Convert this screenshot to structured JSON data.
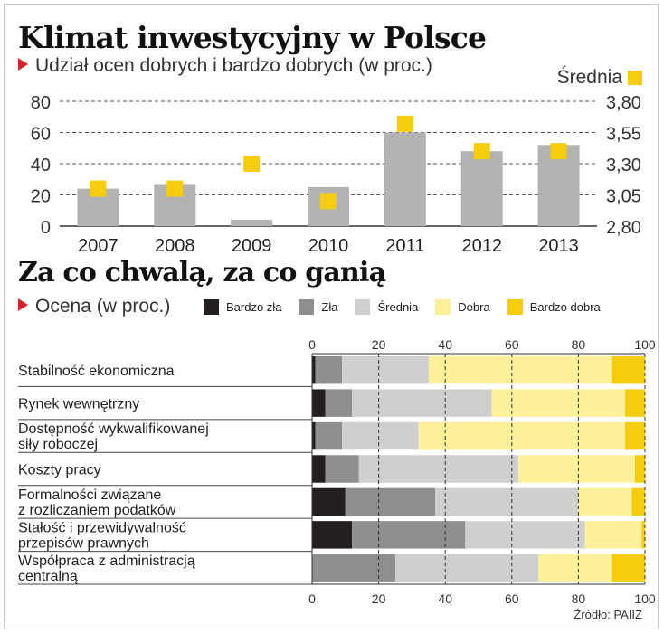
{
  "colors": {
    "bar": "#b3b3b3",
    "mean_marker": "#f6cd0d",
    "bardzo_zla": "#231f20",
    "zla": "#8e8e8e",
    "srednia": "#cfcfcf",
    "dobra": "#fcf09a",
    "bardzo_dobra": "#f6cd0d",
    "accent_triangle": "#d4232c"
  },
  "header": {
    "title": "Klimat inwestycyjny w Polsce",
    "subtitle": "Udział ocen dobrych i bardzo dobrych (w proc.)",
    "mean_legend": "Średnia"
  },
  "section2": {
    "title": "Za co chwalą, za co ganią",
    "subtitle": "Ocena (w proc.)"
  },
  "source": "Źródło: PAIIZ",
  "chart_data": [
    {
      "type": "bar",
      "categories": [
        "2007",
        "2008",
        "2009",
        "2010",
        "2011",
        "2012",
        "2013"
      ],
      "series": [
        {
          "values": [
            24,
            27,
            4,
            25,
            60,
            48,
            52
          ]
        },
        {
          "name": "Średnia",
          "values": [
            3.1,
            3.1,
            3.3,
            3.0,
            3.62,
            3.4,
            3.4
          ]
        }
      ],
      "y_ticks": [
        "0",
        "20",
        "40",
        "60",
        "80"
      ],
      "y2_ticks": [
        "2,80",
        "3,05",
        "3,30",
        "3,55",
        "3,80"
      ],
      "ylim": [
        0,
        80
      ],
      "y2lim": [
        2.8,
        3.8
      ],
      "grid": true
    },
    {
      "type": "bar",
      "orientation": "horizontal",
      "stacked": true,
      "categories": [
        [
          "Stabilność ekonomiczna"
        ],
        [
          "Rynek wewnętrzny"
        ],
        [
          "Dostępność wykwalifikowanej",
          "siły roboczej"
        ],
        [
          "Koszty pracy"
        ],
        [
          "Formalności związane",
          "z rozliczaniem podatków"
        ],
        [
          "Stałość i przewidywalność",
          "przepisów prawnych"
        ],
        [
          "Współpraca z administracją",
          "centralną"
        ]
      ],
      "series": [
        {
          "name": "Bardzo zła",
          "values": [
            1,
            4,
            1,
            4,
            10,
            12,
            0
          ]
        },
        {
          "name": "Zła",
          "values": [
            8,
            8,
            8,
            10,
            27,
            34,
            25
          ]
        },
        {
          "name": "Średnia",
          "values": [
            26,
            42,
            23,
            48,
            43,
            36,
            43
          ]
        },
        {
          "name": "Dobra",
          "values": [
            55,
            40,
            62,
            35,
            16,
            17,
            22
          ]
        },
        {
          "name": "Bardzo dobra",
          "values": [
            10,
            6,
            6,
            3,
            4,
            1,
            10
          ]
        }
      ],
      "x_ticks": [
        "0",
        "20",
        "40",
        "60",
        "80",
        "100"
      ],
      "xlim": [
        0,
        100
      ],
      "grid": true
    }
  ]
}
